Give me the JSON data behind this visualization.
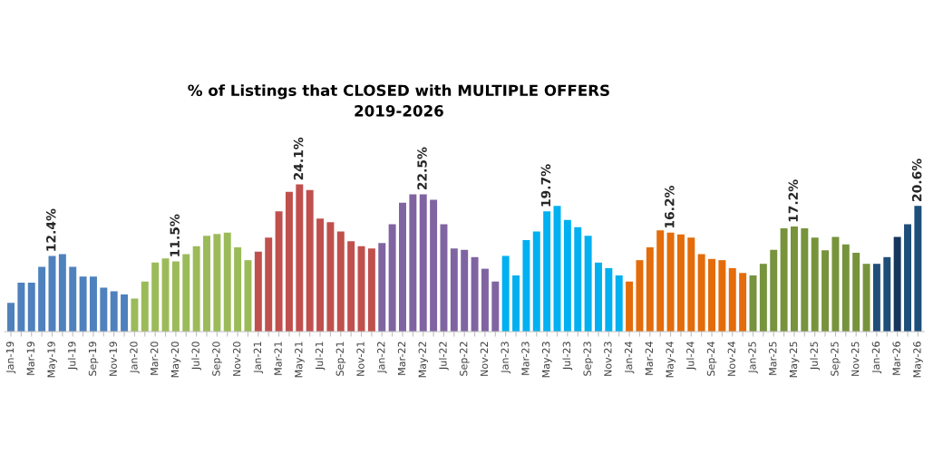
{
  "chart_data": {
    "type": "bar",
    "title": "% of Listings that CLOSED with MULTIPLE OFFERS\n2019-2026",
    "categories": [
      "Jan-19",
      null,
      "Mar-19",
      null,
      "May-19",
      null,
      "Jul-19",
      null,
      "Sep-19",
      null,
      "Nov-19",
      null,
      "Jan-20",
      null,
      "Mar-20",
      null,
      "May-20",
      null,
      "Jul-20",
      null,
      "Sep-20",
      null,
      "Nov-20",
      null,
      "Jan-21",
      null,
      "Mar-21",
      null,
      "May-21",
      null,
      "Jul-21",
      null,
      "Sep-21",
      null,
      "Nov-21",
      null,
      "Jan-22",
      null,
      "Mar-22",
      null,
      "May-22",
      null,
      "Jul-22",
      null,
      "Sep-22",
      null,
      "Nov-22",
      null,
      "Jan-23",
      null,
      "Mar-23",
      null,
      "May-23",
      null,
      "Jul-23",
      null,
      "Sep-23",
      null,
      "Nov-23",
      null,
      "Jan-24",
      null,
      "Mar-24",
      null,
      "May-24",
      null,
      "Jul-24",
      null,
      "Sep-24",
      null,
      "Nov-24",
      null,
      "Jan-25",
      null,
      "Mar-25",
      null,
      "May-25",
      null,
      "Jul-25",
      null,
      "Sep-25",
      null,
      "Nov-25",
      null,
      "Jan-26",
      null,
      "Mar-26",
      null,
      "May-26"
    ],
    "values": [
      4.7,
      8.0,
      8.0,
      10.6,
      12.4,
      12.7,
      10.6,
      9.0,
      9.0,
      7.2,
      6.6,
      6.1,
      5.4,
      8.2,
      11.3,
      12.0,
      11.5,
      12.7,
      14.0,
      15.7,
      16.0,
      16.2,
      13.8,
      11.7,
      13.1,
      15.4,
      19.7,
      22.9,
      24.1,
      23.2,
      18.5,
      17.9,
      16.4,
      14.8,
      14.0,
      13.6,
      14.5,
      17.6,
      21.1,
      22.5,
      22.5,
      21.6,
      17.6,
      13.6,
      13.4,
      12.2,
      10.3,
      8.2,
      12.4,
      9.2,
      15.0,
      16.4,
      19.7,
      20.6,
      18.3,
      17.1,
      15.7,
      11.3,
      10.4,
      9.2,
      8.2,
      11.7,
      13.8,
      16.6,
      16.2,
      15.9,
      15.4,
      12.7,
      11.9,
      11.7,
      10.4,
      9.6,
      9.2,
      11.1,
      13.4,
      16.9,
      17.2,
      16.9,
      15.4,
      13.3,
      15.5,
      14.3,
      12.9,
      11.1,
      11.1,
      12.2,
      15.5,
      17.6,
      20.6
    ],
    "colors": [
      "#4f81bd",
      "#4f81bd",
      "#4f81bd",
      "#4f81bd",
      "#4f81bd",
      "#4f81bd",
      "#4f81bd",
      "#4f81bd",
      "#4f81bd",
      "#4f81bd",
      "#4f81bd",
      "#4f81bd",
      "#9bbb59",
      "#9bbb59",
      "#9bbb59",
      "#9bbb59",
      "#9bbb59",
      "#9bbb59",
      "#9bbb59",
      "#9bbb59",
      "#9bbb59",
      "#9bbb59",
      "#9bbb59",
      "#9bbb59",
      "#c0504d",
      "#c0504d",
      "#c0504d",
      "#c0504d",
      "#c0504d",
      "#c0504d",
      "#c0504d",
      "#c0504d",
      "#c0504d",
      "#c0504d",
      "#c0504d",
      "#c0504d",
      "#8064a2",
      "#8064a2",
      "#8064a2",
      "#8064a2",
      "#8064a2",
      "#8064a2",
      "#8064a2",
      "#8064a2",
      "#8064a2",
      "#8064a2",
      "#8064a2",
      "#8064a2",
      "#00b0f0",
      "#00b0f0",
      "#00b0f0",
      "#00b0f0",
      "#00b0f0",
      "#00b0f0",
      "#00b0f0",
      "#00b0f0",
      "#00b0f0",
      "#00b0f0",
      "#00b0f0",
      "#00b0f0",
      "#e46c0a",
      "#e46c0a",
      "#e46c0a",
      "#e46c0a",
      "#e46c0a",
      "#e46c0a",
      "#e46c0a",
      "#e46c0a",
      "#e46c0a",
      "#e46c0a",
      "#e46c0a",
      "#e46c0a",
      "#77933c",
      "#77933c",
      "#77933c",
      "#77933c",
      "#77933c",
      "#77933c",
      "#77933c",
      "#77933c",
      "#77933c",
      "#77933c",
      "#77933c",
      "#77933c",
      "#1f4e79",
      "#1f4e79",
      "#17365d",
      "#1f4e79",
      "#1f4e79"
    ],
    "value_labels": [
      null,
      null,
      null,
      null,
      "12.4%",
      null,
      null,
      null,
      null,
      null,
      null,
      null,
      null,
      null,
      null,
      null,
      "11.5%",
      null,
      null,
      null,
      null,
      null,
      null,
      null,
      null,
      null,
      null,
      null,
      "24.1%",
      null,
      null,
      null,
      null,
      null,
      null,
      null,
      null,
      null,
      null,
      null,
      "22.5%",
      null,
      null,
      null,
      null,
      null,
      null,
      null,
      null,
      null,
      null,
      null,
      "19.7%",
      null,
      null,
      null,
      null,
      null,
      null,
      null,
      null,
      null,
      null,
      null,
      "16.2%",
      null,
      null,
      null,
      null,
      null,
      null,
      null,
      null,
      null,
      null,
      null,
      "17.2%",
      null,
      null,
      null,
      null,
      null,
      null,
      null,
      null,
      null,
      null,
      null,
      "20.6%"
    ],
    "grid": false
  }
}
